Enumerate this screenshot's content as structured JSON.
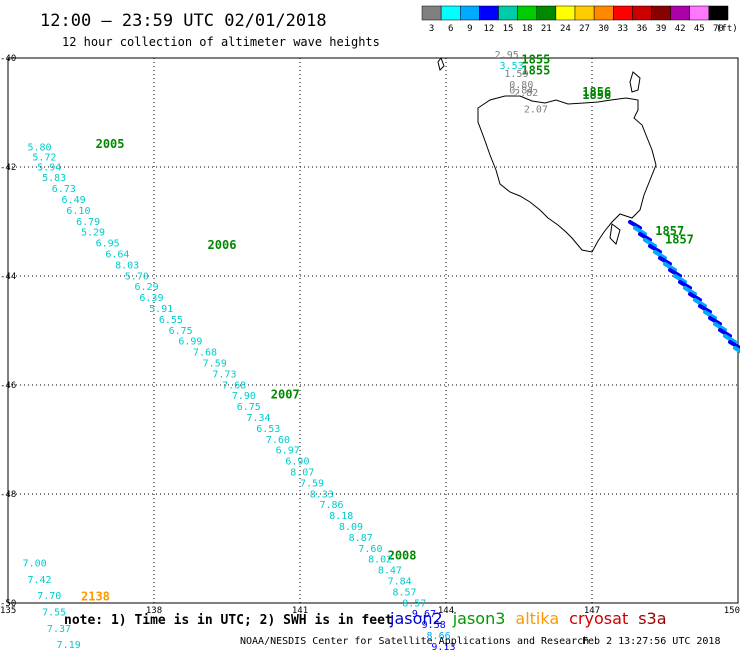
{
  "header": {
    "title": "12:00 – 23:59 UTC 02/01/2018",
    "subtitle": "12 hour collection of altimeter wave heights"
  },
  "colorbar": {
    "labels": [
      "3",
      "6",
      "9",
      "12",
      "15",
      "18",
      "21",
      "24",
      "27",
      "30",
      "33",
      "36",
      "39",
      "42",
      "45",
      "70"
    ],
    "unit": "(ft)",
    "colors": [
      "#808080",
      "#00ffff",
      "#00aaff",
      "#0000ff",
      "#00ccaa",
      "#00cc00",
      "#008800",
      "#ffff00",
      "#ffcc00",
      "#ff8800",
      "#ff0000",
      "#cc0000",
      "#880000",
      "#aa00aa",
      "#ff77ff",
      "#000000"
    ]
  },
  "footer": {
    "note": "note: 1) Time is in UTC; 2) SWH is in feet",
    "credit": "NOAA/NESDIS Center for Satellite Applications and Research",
    "timestamp": "Feb  2 13:27:56 UTC 2018",
    "satellites": [
      {
        "name": "jason2",
        "color": "#0000cc"
      },
      {
        "name": "jason3",
        "color": "#009900"
      },
      {
        "name": "altika",
        "color": "#ff9900"
      },
      {
        "name": "cryosat",
        "color": "#cc0000"
      },
      {
        "name": "s3a",
        "color": "#990000"
      }
    ]
  },
  "chart_data": {
    "type": "scatter",
    "xlim": [
      135,
      150
    ],
    "ylim": [
      -50,
      -40
    ],
    "x_ticks": [
      "135",
      "138",
      "141",
      "144",
      "147",
      "150"
    ],
    "y_ticks": [
      "-40",
      "-42",
      "-44",
      "-46",
      "-48",
      "-50"
    ],
    "grid": true,
    "time_labels": [
      {
        "text": "2005",
        "lon": 136.8,
        "lat": -41.65,
        "color": "#008800"
      },
      {
        "text": "2006",
        "lon": 139.1,
        "lat": -43.5,
        "color": "#008800"
      },
      {
        "text": "2007",
        "lon": 140.4,
        "lat": -46.25,
        "color": "#008800"
      },
      {
        "text": "2008",
        "lon": 142.8,
        "lat": -49.2,
        "color": "#008800"
      },
      {
        "text": "2138",
        "lon": 136.5,
        "lat": -49.95,
        "color": "#ff9900"
      },
      {
        "text": "1855",
        "lon": 145.55,
        "lat": -40.1,
        "color": "#008800"
      },
      {
        "text": "1855",
        "lon": 145.55,
        "lat": -40.3,
        "color": "#008800"
      },
      {
        "text": "1856",
        "lon": 146.8,
        "lat": -40.7,
        "color": "#008800"
      },
      {
        "text": "1856",
        "lon": 146.8,
        "lat": -40.75,
        "color": "#008800"
      },
      {
        "text": "1857",
        "lon": 148.3,
        "lat": -43.25,
        "color": "#008800"
      },
      {
        "text": "1857",
        "lon": 148.5,
        "lat": -43.4,
        "color": "#008800"
      }
    ],
    "series": [
      {
        "satellite": "jason3",
        "points": [
          {
            "v": "5.80",
            "lon": 135.4,
            "lat": -41.7,
            "color": "#00cccc"
          },
          {
            "v": "5.72",
            "lon": 135.5,
            "lat": -41.88,
            "color": "#00cccc"
          },
          {
            "v": "5.94",
            "lon": 135.6,
            "lat": -42.06,
            "color": "#00cccc"
          },
          {
            "v": "5.83",
            "lon": 135.7,
            "lat": -42.26,
            "color": "#00cccc"
          },
          {
            "v": "6.73",
            "lon": 135.9,
            "lat": -42.46,
            "color": "#00cccc"
          },
          {
            "v": "6.49",
            "lon": 136.1,
            "lat": -42.66,
            "color": "#00cccc"
          },
          {
            "v": "6.10",
            "lon": 136.2,
            "lat": -42.86,
            "color": "#00cccc"
          },
          {
            "v": "6.79",
            "lon": 136.4,
            "lat": -43.06,
            "color": "#00cccc"
          },
          {
            "v": "5.29",
            "lon": 136.5,
            "lat": -43.26,
            "color": "#00cccc"
          },
          {
            "v": "6.95",
            "lon": 136.8,
            "lat": -43.46,
            "color": "#00cccc"
          },
          {
            "v": "6.64",
            "lon": 137.0,
            "lat": -43.66,
            "color": "#00cccc"
          },
          {
            "v": "8.03",
            "lon": 137.2,
            "lat": -43.86,
            "color": "#00cccc"
          },
          {
            "v": "5.70",
            "lon": 137.4,
            "lat": -44.06,
            "color": "#00cccc"
          },
          {
            "v": "6.29",
            "lon": 137.6,
            "lat": -44.26,
            "color": "#00cccc"
          },
          {
            "v": "6.39",
            "lon": 137.7,
            "lat": -44.46,
            "color": "#00cccc"
          },
          {
            "v": "5.91",
            "lon": 137.9,
            "lat": -44.66,
            "color": "#00cccc"
          },
          {
            "v": "6.55",
            "lon": 138.1,
            "lat": -44.86,
            "color": "#00cccc"
          },
          {
            "v": "6.75",
            "lon": 138.3,
            "lat": -45.06,
            "color": "#00cccc"
          },
          {
            "v": "6.99",
            "lon": 138.5,
            "lat": -45.26,
            "color": "#00cccc"
          },
          {
            "v": "7.68",
            "lon": 138.8,
            "lat": -45.46,
            "color": "#00cccc"
          },
          {
            "v": "7.59",
            "lon": 139.0,
            "lat": -45.66,
            "color": "#00cccc"
          },
          {
            "v": "7.73",
            "lon": 139.2,
            "lat": -45.86,
            "color": "#00cccc"
          },
          {
            "v": "7.68",
            "lon": 139.4,
            "lat": -46.06,
            "color": "#00cccc"
          },
          {
            "v": "7.90",
            "lon": 139.6,
            "lat": -46.26,
            "color": "#00cccc"
          },
          {
            "v": "6.75",
            "lon": 139.7,
            "lat": -46.46,
            "color": "#00cccc"
          },
          {
            "v": "7.34",
            "lon": 139.9,
            "lat": -46.66,
            "color": "#00cccc"
          },
          {
            "v": "6.53",
            "lon": 140.1,
            "lat": -46.86,
            "color": "#00cccc"
          },
          {
            "v": "7.60",
            "lon": 140.3,
            "lat": -47.06,
            "color": "#00cccc"
          },
          {
            "v": "6.97",
            "lon": 140.5,
            "lat": -47.26,
            "color": "#00cccc"
          },
          {
            "v": "6.90",
            "lon": 140.7,
            "lat": -47.46,
            "color": "#00cccc"
          },
          {
            "v": "8.07",
            "lon": 140.8,
            "lat": -47.66,
            "color": "#00cccc"
          },
          {
            "v": "7.59",
            "lon": 141.0,
            "lat": -47.86,
            "color": "#00cccc"
          },
          {
            "v": "8.33",
            "lon": 141.2,
            "lat": -48.06,
            "color": "#00cccc"
          },
          {
            "v": "7.86",
            "lon": 141.4,
            "lat": -48.26,
            "color": "#00cccc"
          },
          {
            "v": "8.18",
            "lon": 141.6,
            "lat": -48.46,
            "color": "#00cccc"
          },
          {
            "v": "8.09",
            "lon": 141.8,
            "lat": -48.66,
            "color": "#00cccc"
          },
          {
            "v": "8.87",
            "lon": 142.0,
            "lat": -48.86,
            "color": "#00cccc"
          },
          {
            "v": "7.60",
            "lon": 142.2,
            "lat": -49.06,
            "color": "#00cccc"
          },
          {
            "v": "8.02",
            "lon": 142.4,
            "lat": -49.26,
            "color": "#00cccc"
          },
          {
            "v": "8.47",
            "lon": 142.6,
            "lat": -49.46,
            "color": "#00cccc"
          },
          {
            "v": "7.84",
            "lon": 142.8,
            "lat": -49.66,
            "color": "#00cccc"
          },
          {
            "v": "8.57",
            "lon": 142.9,
            "lat": -49.86,
            "color": "#00cccc"
          },
          {
            "v": "8.57",
            "lon": 143.1,
            "lat": -50.06,
            "color": "#00cccc"
          },
          {
            "v": "9.67",
            "lon": 143.3,
            "lat": -50.26,
            "color": "#0000ff"
          },
          {
            "v": "9.58",
            "lon": 143.5,
            "lat": -50.46,
            "color": "#0000ff"
          },
          {
            "v": "8.66",
            "lon": 143.6,
            "lat": -50.66,
            "color": "#00aaff"
          },
          {
            "v": "9.13",
            "lon": 143.7,
            "lat": -50.86,
            "color": "#0000ff"
          }
        ]
      },
      {
        "satellite": "altika",
        "points": [
          {
            "v": "7.00",
            "lon": 135.3,
            "lat": -49.33,
            "color": "#00cccc"
          },
          {
            "v": "7.42",
            "lon": 135.4,
            "lat": -49.63,
            "color": "#00cccc"
          },
          {
            "v": "7.70",
            "lon": 135.6,
            "lat": -49.93,
            "color": "#00cccc"
          },
          {
            "v": "7.55",
            "lon": 135.7,
            "lat": -50.23,
            "color": "#00cccc"
          },
          {
            "v": "7.37",
            "lon": 135.8,
            "lat": -50.53,
            "color": "#00cccc"
          },
          {
            "v": "7.19",
            "lon": 136.0,
            "lat": -50.83,
            "color": "#00cccc"
          }
        ]
      },
      {
        "satellite": "jason3",
        "points": [
          {
            "v": "2.95",
            "lon": 145.0,
            "lat": -40.0,
            "color": "#808080"
          },
          {
            "v": "3.53",
            "lon": 145.1,
            "lat": -40.2,
            "color": "#00cccc"
          },
          {
            "v": "1.59",
            "lon": 145.2,
            "lat": -40.35,
            "color": "#808080"
          },
          {
            "v": "0.80",
            "lon": 145.3,
            "lat": -40.55,
            "color": "#808080"
          },
          {
            "v": "0.84",
            "lon": 145.3,
            "lat": -40.65,
            "color": "#808080"
          },
          {
            "v": "2.82",
            "lon": 145.4,
            "lat": -40.7,
            "color": "#808080"
          },
          {
            "v": "2.07",
            "lon": 145.6,
            "lat": -41.0,
            "color": "#808080"
          }
        ]
      }
    ]
  }
}
